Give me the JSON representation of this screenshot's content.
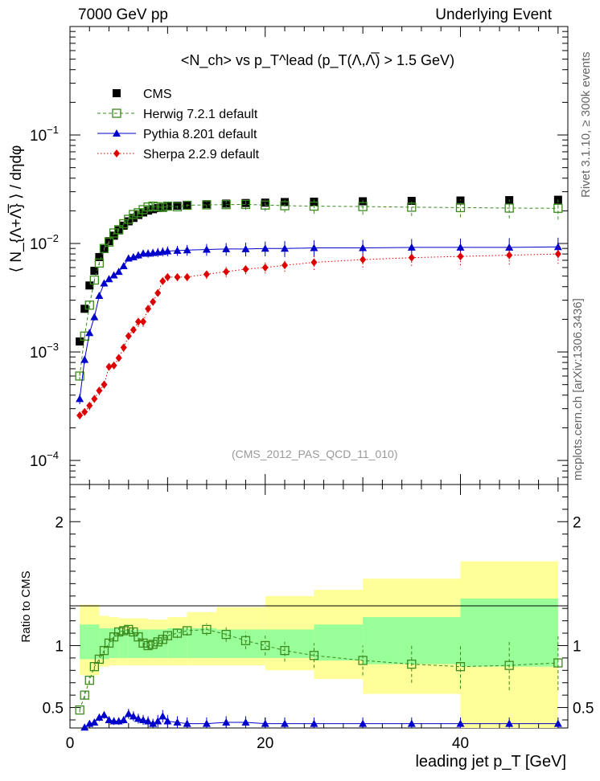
{
  "header": {
    "energy": "7000 GeV pp",
    "process": "Underlying Event",
    "rivet": "Rivet 3.1.10, ≥ 300k events",
    "source": "mcplots.cern.ch [arXiv:1306.3436]",
    "analysis": "(CMS_2012_PAS_QCD_11_010)"
  },
  "chart_data": [
    {
      "type": "scatter",
      "panel": "main",
      "title": "<N_ch> vs p_T^lead (p_T(Λ,Λ̅) > 1.5 GeV)",
      "xlabel": "leading jet p_T [GeV]",
      "ylabel": "⟨ N_{Λ+Λ̅} ⟩ / dηdφ",
      "yscale": "log",
      "ylim": [
        6e-05,
        1
      ],
      "xlim": [
        0,
        51
      ],
      "legend_position": "top-left",
      "y_ticks": [
        {
          "value": 0.1,
          "label": "10",
          "exp": "−1"
        },
        {
          "value": 0.01,
          "label": "10",
          "exp": "−2"
        },
        {
          "value": 0.001,
          "label": "10",
          "exp": "−3"
        },
        {
          "value": 0.0001,
          "label": "10",
          "exp": "−4"
        }
      ],
      "series": [
        {
          "name": "CMS",
          "color": "#000000",
          "marker": "square-filled",
          "x": [
            1.0,
            1.5,
            2.0,
            2.5,
            3.0,
            3.5,
            4.0,
            4.5,
            5.0,
            5.5,
            6.0,
            6.5,
            7.0,
            7.5,
            8.0,
            8.5,
            9.0,
            9.5,
            10.0,
            11.0,
            12.0,
            14.0,
            16.0,
            18.0,
            20.0,
            22.0,
            25.0,
            30.0,
            35.0,
            40.0,
            45.0,
            50.0
          ],
          "y": [
            0.00125,
            0.0025,
            0.0041,
            0.0056,
            0.0075,
            0.0089,
            0.0105,
            0.0118,
            0.0132,
            0.0146,
            0.016,
            0.0172,
            0.0183,
            0.0193,
            0.0201,
            0.0207,
            0.0212,
            0.0216,
            0.0219,
            0.0223,
            0.0226,
            0.023,
            0.0233,
            0.0236,
            0.0238,
            0.0241,
            0.0243,
            0.0245,
            0.0247,
            0.0249,
            0.0251,
            0.0253
          ]
        },
        {
          "name": "Herwig 7.2.1 default",
          "color": "#3a8a1e",
          "marker": "square-open",
          "line": "dashed",
          "x": [
            1.0,
            1.5,
            2.0,
            2.5,
            3.0,
            3.5,
            4.0,
            4.5,
            5.0,
            5.5,
            6.0,
            6.5,
            7.0,
            7.5,
            8.0,
            8.5,
            9.0,
            9.5,
            10.0,
            11.0,
            12.0,
            14.0,
            16.0,
            18.0,
            20.0,
            22.0,
            25.0,
            30.0,
            35.0,
            40.0,
            45.0,
            50.0
          ],
          "y": [
            0.0006,
            0.0014,
            0.0027,
            0.0046,
            0.0066,
            0.009,
            0.0103,
            0.0125,
            0.0134,
            0.0152,
            0.0167,
            0.0185,
            0.0192,
            0.0205,
            0.0217,
            0.0221,
            0.0218,
            0.0215,
            0.0221,
            0.0218,
            0.0225,
            0.0227,
            0.0228,
            0.0229,
            0.0226,
            0.0223,
            0.0221,
            0.0219,
            0.0216,
            0.0214,
            0.0212,
            0.0211
          ],
          "yerr": [
            5e-05,
            0.0001,
            0.0002,
            0.0003,
            0.0003,
            0.0004,
            0.0004,
            0.0004,
            0.0005,
            0.0005,
            0.0005,
            0.0006,
            0.0006,
            0.0006,
            0.0007,
            0.0007,
            0.0007,
            0.0008,
            0.0008,
            0.0009,
            0.0009,
            0.0015,
            0.002,
            0.0025,
            0.0028,
            0.003,
            0.0033,
            0.0035,
            0.0037,
            0.004,
            0.0042,
            0.0045
          ]
        },
        {
          "name": "Pythia 8.201 default",
          "color": "#0000cc",
          "marker": "triangle-filled",
          "line": "solid",
          "x": [
            1.0,
            1.5,
            2.0,
            2.5,
            3.0,
            3.5,
            4.0,
            4.5,
            5.0,
            5.5,
            6.0,
            6.5,
            7.0,
            7.5,
            8.0,
            8.5,
            9.0,
            9.5,
            10.0,
            11.0,
            12.0,
            14.0,
            16.0,
            18.0,
            20.0,
            22.0,
            25.0,
            30.0,
            35.0,
            40.0,
            45.0,
            50.0
          ],
          "y": [
            0.00037,
            0.00085,
            0.0015,
            0.0021,
            0.0033,
            0.0043,
            0.0047,
            0.0051,
            0.0055,
            0.0062,
            0.0073,
            0.0075,
            0.0078,
            0.0081,
            0.0081,
            0.0082,
            0.0083,
            0.0084,
            0.0085,
            0.0086,
            0.0087,
            0.0088,
            0.0089,
            0.0089,
            0.009,
            0.009,
            0.0091,
            0.0091,
            0.0092,
            0.0092,
            0.0092,
            0.0093
          ],
          "yerr": [
            4e-05,
            7e-05,
            0.0001,
            0.00015,
            0.0002,
            0.0003,
            0.0003,
            0.0003,
            0.0003,
            0.0004,
            0.0005,
            0.0005,
            0.0006,
            0.0006,
            0.0007,
            0.0007,
            0.0008,
            0.0008,
            0.0009,
            0.0009,
            0.001,
            0.0011,
            0.0012,
            0.0013,
            0.0014,
            0.0015,
            0.0016,
            0.0017,
            0.0018,
            0.0019,
            0.002,
            0.002
          ]
        },
        {
          "name": "Sherpa 2.2.9 default",
          "color": "#dd0000",
          "marker": "diamond-filled",
          "line": "dotted",
          "x": [
            1.0,
            1.5,
            2.0,
            2.5,
            3.0,
            3.5,
            4.0,
            4.5,
            5.0,
            5.5,
            6.0,
            6.5,
            7.0,
            7.5,
            8.0,
            8.5,
            9.0,
            9.5,
            10.0,
            11.0,
            12.0,
            14.0,
            16.0,
            18.0,
            20.0,
            22.0,
            25.0,
            30.0,
            35.0,
            40.0,
            45.0,
            50.0
          ],
          "y": [
            0.00026,
            0.00028,
            0.00032,
            0.00037,
            0.00044,
            0.0005,
            0.00073,
            0.00075,
            0.00088,
            0.0011,
            0.0014,
            0.0016,
            0.0019,
            0.0019,
            0.0025,
            0.0029,
            0.0035,
            0.0045,
            0.0049,
            0.0049,
            0.0049,
            0.0052,
            0.0055,
            0.0058,
            0.006,
            0.0063,
            0.0067,
            0.0071,
            0.0074,
            0.0076,
            0.0078,
            0.008
          ],
          "yerr": [
            2e-05,
            2e-05,
            3e-05,
            3e-05,
            4e-05,
            4e-05,
            5e-05,
            5e-05,
            6e-05,
            0.0001,
            0.0001,
            0.0001,
            0.0002,
            0.0002,
            0.0002,
            0.0002,
            0.0002,
            0.0003,
            0.0004,
            0.0004,
            0.0004,
            0.0005,
            0.0006,
            0.0006,
            0.0007,
            0.0008,
            0.001,
            0.0011,
            0.0012,
            0.0013,
            0.0014,
            0.0015
          ]
        }
      ]
    },
    {
      "type": "scatter",
      "panel": "ratio",
      "xlabel": "leading jet p_T [GeV]",
      "ylabel": "Ratio to CMS",
      "ylim": [
        0.335,
        2.3
      ],
      "xlim": [
        0,
        51
      ],
      "x_ticks": [
        0,
        20,
        40
      ],
      "y_ticks": [
        0.5,
        1,
        2
      ],
      "bands": {
        "x_edges": [
          1,
          3,
          4,
          5,
          6,
          8,
          10,
          12,
          15,
          20,
          25,
          30,
          40,
          50
        ],
        "inner_lo": [
          0.89,
          0.89,
          0.9,
          0.9,
          0.9,
          0.9,
          0.9,
          0.9,
          0.9,
          0.9,
          0.88,
          0.85,
          0.83
        ],
        "inner_hi": [
          1.17,
          1.14,
          1.14,
          1.13,
          1.13,
          1.13,
          1.14,
          1.14,
          1.13,
          1.13,
          1.17,
          1.23,
          1.38
        ],
        "outer_lo": [
          0.76,
          0.83,
          0.84,
          0.84,
          0.84,
          0.84,
          0.84,
          0.84,
          0.84,
          0.8,
          0.73,
          0.61,
          0.335
        ],
        "outer_hi": [
          1.33,
          1.24,
          1.23,
          1.22,
          1.22,
          1.21,
          1.23,
          1.27,
          1.31,
          1.4,
          1.45,
          1.54,
          1.68
        ],
        "inner_color": "#99ff99",
        "outer_color": "#ffff99"
      },
      "series": [
        {
          "name": "Herwig 7.2.1 default",
          "color": "#3a8a1e",
          "marker": "square-open",
          "line": "dashed",
          "x": [
            1.0,
            1.5,
            2.0,
            2.5,
            3.0,
            3.5,
            4.0,
            4.5,
            5.0,
            5.5,
            6.0,
            6.5,
            7.0,
            7.5,
            8.0,
            8.5,
            9.0,
            9.5,
            10.0,
            11.0,
            12.0,
            14.0,
            16.0,
            18.0,
            20.0,
            22.0,
            25.0,
            30.0,
            35.0,
            40.0,
            45.0,
            50.0
          ],
          "y": [
            0.48,
            0.6,
            0.72,
            0.83,
            0.89,
            0.96,
            1.02,
            1.07,
            1.11,
            1.12,
            1.13,
            1.11,
            1.07,
            1.02,
            1.0,
            1.01,
            1.03,
            1.05,
            1.08,
            1.1,
            1.12,
            1.13,
            1.09,
            1.04,
            1.0,
            0.96,
            0.92,
            0.88,
            0.85,
            0.83,
            0.84,
            0.86
          ],
          "yerr": [
            0.02,
            0.03,
            0.03,
            0.03,
            0.03,
            0.03,
            0.03,
            0.03,
            0.03,
            0.03,
            0.03,
            0.03,
            0.03,
            0.03,
            0.03,
            0.03,
            0.03,
            0.03,
            0.03,
            0.04,
            0.04,
            0.05,
            0.06,
            0.07,
            0.08,
            0.09,
            0.1,
            0.12,
            0.15,
            0.18,
            0.2,
            0.22
          ]
        },
        {
          "name": "Pythia 8.201 default",
          "color": "#0000cc",
          "marker": "triangle-filled",
          "line": "solid",
          "x": [
            1.0,
            1.5,
            2.0,
            2.5,
            3.0,
            3.5,
            4.0,
            4.5,
            5.0,
            5.5,
            6.0,
            6.5,
            7.0,
            7.5,
            8.0,
            8.5,
            9.0,
            9.5,
            10.0,
            11.0,
            12.0,
            14.0,
            16.0,
            18.0,
            20.0,
            22.0,
            25.0,
            30.0,
            35.0,
            40.0,
            45.0,
            50.0
          ],
          "y": [
            0.3,
            0.34,
            0.37,
            0.38,
            0.42,
            0.44,
            0.4,
            0.39,
            0.39,
            0.4,
            0.45,
            0.43,
            0.41,
            0.4,
            0.39,
            0.37,
            0.39,
            0.43,
            0.39,
            0.38,
            0.37,
            0.37,
            0.38,
            0.38,
            0.37,
            0.37,
            0.37,
            0.37,
            0.37,
            0.37,
            0.37,
            0.37
          ],
          "yerr": [
            0.02,
            0.02,
            0.02,
            0.02,
            0.03,
            0.03,
            0.03,
            0.03,
            0.03,
            0.03,
            0.04,
            0.04,
            0.04,
            0.04,
            0.04,
            0.04,
            0.05,
            0.05,
            0.05,
            0.05,
            0.05,
            0.05,
            0.05,
            0.05,
            0.05,
            0.05,
            0.05,
            0.05,
            0.05,
            0.05,
            0.05,
            0.05
          ]
        }
      ]
    }
  ]
}
